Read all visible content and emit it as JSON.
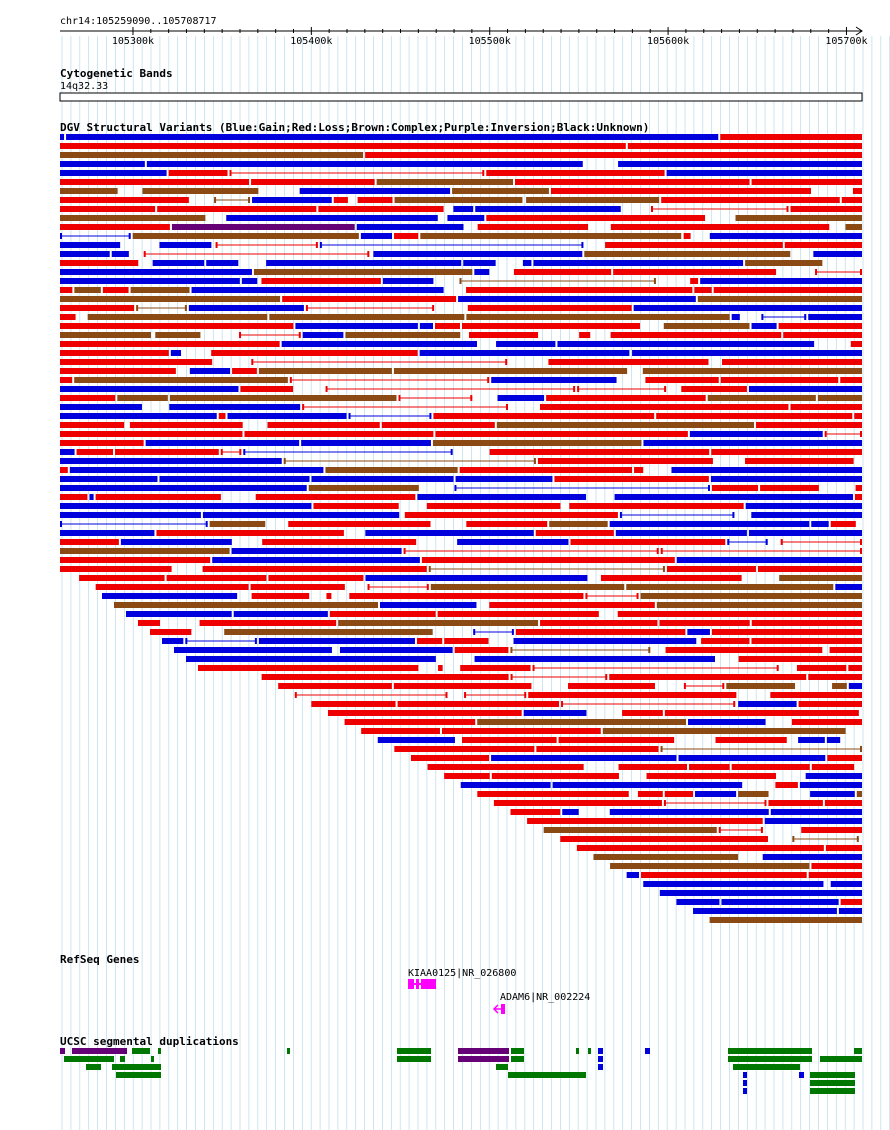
{
  "region": {
    "label": "chr14:105259090..105708717",
    "start": 105259090,
    "end": 105708717
  },
  "ruler": {
    "ticks": [
      {
        "pos": 105300000,
        "label": "105300k"
      },
      {
        "pos": 105400000,
        "label": "105400k"
      },
      {
        "pos": 105500000,
        "label": "105500k"
      },
      {
        "pos": 105600000,
        "label": "105600k"
      },
      {
        "pos": 105700000,
        "label": "105700k"
      }
    ]
  },
  "tracks": {
    "cytoband": {
      "title": "Cytogenetic Bands",
      "band": "14q32.33"
    },
    "dgv": {
      "title": "DGV Structural Variants (Blue:Gain;Red:Loss;Brown:Complex;Purple:Inversion;Black:Unknown)",
      "colors": {
        "gain": "#0000dd",
        "loss": "#ee0000",
        "complex": "#8b4a14",
        "inversion": "#660077",
        "unknown": "#000000"
      }
    },
    "refseq": {
      "title": "RefSeq Genes",
      "color": "#ff00ff",
      "genes": [
        {
          "label": "KIAA0125|NR_026800",
          "start": 105453000,
          "end": 105473000
        },
        {
          "label": "ADAM6|NR_002224",
          "start": 105507000,
          "end": 105512000,
          "strand": "-"
        }
      ]
    },
    "segdup": {
      "title": "UCSC segmental duplications",
      "colors": {
        "green": "#007700",
        "purple": "#660077",
        "blue": "#0000dd"
      }
    }
  }
}
